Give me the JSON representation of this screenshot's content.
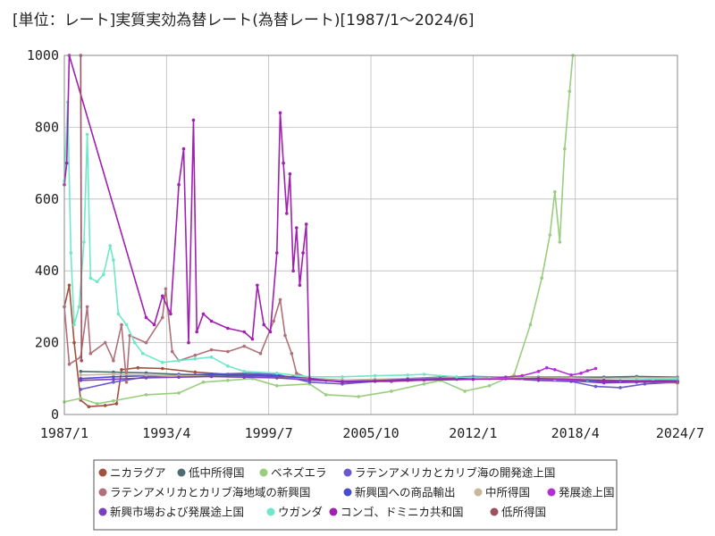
{
  "chart_data": {
    "type": "line",
    "title": "[単位：レート]実質実効為替レート(為替レート)[1987/1～2024/6]",
    "xlabel": "",
    "ylabel": "",
    "xlim": [
      1987.0,
      2024.5
    ],
    "ylim": [
      0,
      1000
    ],
    "x_tick_labels": [
      {
        "x": 1987.0,
        "label": "1987/1"
      },
      {
        "x": 1993.25,
        "label": "1993/4"
      },
      {
        "x": 1999.5,
        "label": "1999/7"
      },
      {
        "x": 2005.75,
        "label": "2005/10"
      },
      {
        "x": 2012.0,
        "label": "2012/1"
      },
      {
        "x": 2018.25,
        "label": "2018/4"
      },
      {
        "x": 2024.5,
        "label": "2024/7"
      }
    ],
    "y_ticks": [
      0,
      200,
      400,
      600,
      800,
      1000
    ],
    "grid": true,
    "legend_position": "bottom",
    "series": [
      {
        "name": "ニカラグア",
        "color": "#a0523f",
        "points": [
          [
            1987.0,
            300
          ],
          [
            1987.3,
            360
          ],
          [
            1987.6,
            200
          ],
          [
            1988.0,
            40
          ],
          [
            1988.5,
            22
          ],
          [
            1989.5,
            25
          ],
          [
            1990.2,
            30
          ],
          [
            1990.5,
            125
          ],
          [
            1991.5,
            130
          ],
          [
            1993.0,
            128
          ],
          [
            1995.0,
            118
          ],
          [
            1997.0,
            112
          ],
          [
            1999.0,
            110
          ],
          [
            2001.0,
            105
          ],
          [
            2003.0,
            95
          ],
          [
            2005.0,
            92
          ],
          [
            2007.0,
            92
          ],
          [
            2009.0,
            96
          ],
          [
            2011.0,
            98
          ],
          [
            2013.0,
            100
          ],
          [
            2015.0,
            102
          ],
          [
            2017.0,
            100
          ],
          [
            2019.0,
            96
          ],
          [
            2021.0,
            92
          ],
          [
            2023.0,
            90
          ],
          [
            2024.5,
            88
          ]
        ]
      },
      {
        "name": "低中所得国",
        "color": "#4e6d72",
        "points": [
          [
            1988.0,
            120
          ],
          [
            1990.0,
            118
          ],
          [
            1992.0,
            116
          ],
          [
            1994.0,
            112
          ],
          [
            1996.0,
            110
          ],
          [
            1998.0,
            108
          ],
          [
            2000.0,
            106
          ],
          [
            2002.0,
            100
          ],
          [
            2004.0,
            96
          ],
          [
            2006.0,
            96
          ],
          [
            2008.0,
            98
          ],
          [
            2010.0,
            100
          ],
          [
            2012.0,
            102
          ],
          [
            2014.0,
            103
          ],
          [
            2016.0,
            104
          ],
          [
            2018.0,
            104
          ],
          [
            2020.0,
            104
          ],
          [
            2022.0,
            106
          ],
          [
            2024.5,
            104
          ]
        ]
      },
      {
        "name": "ベネズエラ",
        "color": "#9acd7f",
        "points": [
          [
            1987.0,
            35
          ],
          [
            1988.0,
            45
          ],
          [
            1989.0,
            30
          ],
          [
            1990.0,
            38
          ],
          [
            1992.0,
            55
          ],
          [
            1994.0,
            60
          ],
          [
            1995.5,
            90
          ],
          [
            1997.0,
            95
          ],
          [
            1998.5,
            100
          ],
          [
            2000.0,
            80
          ],
          [
            2002.0,
            85
          ],
          [
            2003.0,
            55
          ],
          [
            2005.0,
            50
          ],
          [
            2007.0,
            65
          ],
          [
            2009.0,
            85
          ],
          [
            2010.0,
            95
          ],
          [
            2011.5,
            65
          ],
          [
            2013.0,
            80
          ],
          [
            2014.5,
            110
          ],
          [
            2015.5,
            250
          ],
          [
            2016.2,
            380
          ],
          [
            2016.7,
            500
          ],
          [
            2017.0,
            620
          ],
          [
            2017.3,
            480
          ],
          [
            2017.6,
            740
          ],
          [
            2017.9,
            900
          ],
          [
            2018.1,
            1000
          ]
        ]
      },
      {
        "name": "ラテンアメリカとカリブ海の開発途上国",
        "color": "#6a5acd",
        "points": [
          [
            1988.0,
            70
          ],
          [
            1990.0,
            90
          ],
          [
            1992.0,
            105
          ],
          [
            1994.0,
            110
          ],
          [
            1996.0,
            112
          ],
          [
            1998.0,
            115
          ],
          [
            2000.0,
            112
          ],
          [
            2002.0,
            90
          ],
          [
            2004.0,
            85
          ],
          [
            2006.0,
            92
          ],
          [
            2008.0,
            98
          ],
          [
            2010.0,
            100
          ],
          [
            2012.0,
            102
          ],
          [
            2014.0,
            100
          ],
          [
            2016.0,
            95
          ],
          [
            2018.0,
            92
          ],
          [
            2019.5,
            78
          ],
          [
            2021.0,
            75
          ],
          [
            2022.5,
            85
          ],
          [
            2024.5,
            90
          ]
        ]
      },
      {
        "name": "ラテンアメリカとカリブ海地域の新興国",
        "color": "#b0707a",
        "points": [
          [
            1987.0,
            300
          ],
          [
            1987.3,
            140
          ],
          [
            1988.0,
            160
          ],
          [
            1988.4,
            300
          ],
          [
            1988.6,
            170
          ],
          [
            1989.5,
            200
          ],
          [
            1990.0,
            150
          ],
          [
            1990.5,
            250
          ],
          [
            1990.8,
            90
          ],
          [
            1991.0,
            220
          ],
          [
            1992.0,
            200
          ],
          [
            1993.0,
            270
          ],
          [
            1993.2,
            350
          ],
          [
            1993.6,
            175
          ],
          [
            1994.0,
            150
          ],
          [
            1995.0,
            165
          ],
          [
            1996.0,
            180
          ],
          [
            1997.0,
            175
          ],
          [
            1998.0,
            190
          ],
          [
            1999.0,
            170
          ],
          [
            1999.8,
            260
          ],
          [
            2000.2,
            320
          ],
          [
            2000.5,
            220
          ],
          [
            2000.9,
            170
          ],
          [
            2001.2,
            115
          ],
          [
            2002.0,
            100
          ],
          [
            2004.0,
            95
          ],
          [
            2008.0,
            98
          ],
          [
            2012.0,
            100
          ],
          [
            2016.0,
            98
          ],
          [
            2020.0,
            92
          ],
          [
            2024.5,
            90
          ]
        ]
      },
      {
        "name": "新興国への商品輸出",
        "color": "#4b4bd0",
        "points": [
          [
            1988.0,
            100
          ],
          [
            1990.0,
            105
          ],
          [
            1992.0,
            108
          ],
          [
            1994.0,
            110
          ],
          [
            1996.0,
            112
          ],
          [
            1998.0,
            110
          ],
          [
            2000.0,
            108
          ],
          [
            2002.0,
            98
          ],
          [
            2004.0,
            94
          ],
          [
            2006.0,
            96
          ],
          [
            2008.0,
            100
          ],
          [
            2010.0,
            104
          ],
          [
            2012.0,
            106
          ],
          [
            2014.0,
            104
          ],
          [
            2016.0,
            98
          ],
          [
            2018.0,
            96
          ],
          [
            2020.0,
            90
          ],
          [
            2022.0,
            94
          ],
          [
            2024.5,
            96
          ]
        ]
      },
      {
        "name": "中所得国",
        "color": "#c8b89a",
        "points": [
          [
            1988.0,
            110
          ],
          [
            1990.0,
            112
          ],
          [
            1992.0,
            110
          ],
          [
            1994.0,
            108
          ],
          [
            1996.0,
            106
          ],
          [
            1998.0,
            104
          ],
          [
            2000.0,
            102
          ],
          [
            2002.0,
            98
          ],
          [
            2004.0,
            96
          ],
          [
            2006.0,
            98
          ],
          [
            2008.0,
            100
          ],
          [
            2010.0,
            102
          ],
          [
            2012.0,
            104
          ],
          [
            2014.0,
            104
          ],
          [
            2016.0,
            102
          ],
          [
            2018.0,
            102
          ],
          [
            2020.0,
            100
          ],
          [
            2022.0,
            102
          ],
          [
            2024.5,
            102
          ]
        ]
      },
      {
        "name": "発展途上国",
        "color": "#b030d0",
        "points": [
          [
            2013.0,
            100
          ],
          [
            2014.0,
            104
          ],
          [
            2015.0,
            108
          ],
          [
            2016.0,
            120
          ],
          [
            2016.5,
            130
          ],
          [
            2017.0,
            125
          ],
          [
            2018.0,
            110
          ],
          [
            2018.6,
            115
          ],
          [
            2019.0,
            122
          ],
          [
            2019.5,
            128
          ]
        ]
      },
      {
        "name": "新興市場および発展途上国",
        "color": "#7a3fbf",
        "points": [
          [
            1988.0,
            95
          ],
          [
            1990.0,
            98
          ],
          [
            1992.0,
            102
          ],
          [
            1994.0,
            104
          ],
          [
            1996.0,
            106
          ],
          [
            1998.0,
            104
          ],
          [
            2000.0,
            102
          ],
          [
            2002.0,
            96
          ],
          [
            2004.0,
            92
          ],
          [
            2006.0,
            94
          ],
          [
            2008.0,
            98
          ],
          [
            2010.0,
            100
          ],
          [
            2012.0,
            102
          ],
          [
            2014.0,
            100
          ],
          [
            2016.0,
            96
          ],
          [
            2018.0,
            94
          ],
          [
            2020.0,
            88
          ],
          [
            2022.0,
            90
          ],
          [
            2024.5,
            92
          ]
        ]
      },
      {
        "name": "ウガンダ",
        "color": "#6ee8c8",
        "points": [
          [
            1987.0,
            650
          ],
          [
            1987.2,
            870
          ],
          [
            1987.4,
            450
          ],
          [
            1987.6,
            250
          ],
          [
            1987.9,
            300
          ],
          [
            1988.2,
            480
          ],
          [
            1988.4,
            780
          ],
          [
            1988.6,
            380
          ],
          [
            1989.0,
            370
          ],
          [
            1989.4,
            390
          ],
          [
            1989.8,
            470
          ],
          [
            1990.0,
            430
          ],
          [
            1990.3,
            280
          ],
          [
            1990.8,
            250
          ],
          [
            1991.3,
            200
          ],
          [
            1991.8,
            170
          ],
          [
            1993.0,
            145
          ],
          [
            1994.0,
            150
          ],
          [
            1995.0,
            155
          ],
          [
            1996.0,
            160
          ],
          [
            1997.0,
            135
          ],
          [
            1998.0,
            120
          ],
          [
            2000.0,
            115
          ],
          [
            2002.0,
            105
          ],
          [
            2004.0,
            105
          ],
          [
            2006.0,
            108
          ],
          [
            2008.0,
            110
          ],
          [
            2009.0,
            112
          ],
          [
            2011.0,
            105
          ],
          [
            2013.0,
            100
          ],
          [
            2015.0,
            100
          ],
          [
            2017.0,
            98
          ],
          [
            2019.0,
            96
          ],
          [
            2021.0,
            95
          ],
          [
            2023.0,
            98
          ],
          [
            2024.5,
            98
          ]
        ]
      },
      {
        "name": "コンゴ、ドミニカ共和国",
        "color": "#a020b0",
        "points": [
          [
            1987.0,
            640
          ],
          [
            1987.15,
            700
          ],
          [
            1987.3,
            1000
          ],
          [
            1992.0,
            270
          ],
          [
            1992.5,
            250
          ],
          [
            1993.0,
            330
          ],
          [
            1993.5,
            280
          ],
          [
            1994.0,
            640
          ],
          [
            1994.3,
            740
          ],
          [
            1994.6,
            200
          ],
          [
            1994.9,
            820
          ],
          [
            1995.1,
            230
          ],
          [
            1995.5,
            280
          ],
          [
            1996.0,
            260
          ],
          [
            1997.0,
            240
          ],
          [
            1998.0,
            230
          ],
          [
            1998.5,
            210
          ],
          [
            1998.8,
            360
          ],
          [
            1999.2,
            250
          ],
          [
            1999.6,
            230
          ],
          [
            2000.0,
            450
          ],
          [
            2000.2,
            840
          ],
          [
            2000.4,
            700
          ],
          [
            2000.6,
            560
          ],
          [
            2000.8,
            670
          ],
          [
            2001.0,
            400
          ],
          [
            2001.2,
            520
          ],
          [
            2001.4,
            360
          ],
          [
            2001.6,
            450
          ],
          [
            2001.8,
            530
          ],
          [
            2002.0,
            100
          ],
          [
            2004.0,
            90
          ],
          [
            2008.0,
            95
          ],
          [
            2012.0,
            98
          ],
          [
            2016.0,
            100
          ],
          [
            2020.0,
            95
          ],
          [
            2024.5,
            92
          ]
        ]
      },
      {
        "name": "低所得国",
        "color": "#9c5060",
        "points": [
          [
            1988.0,
            1000
          ],
          [
            1988.05,
            150
          ]
        ]
      }
    ]
  },
  "legend": {
    "items": [
      "ニカラグア",
      "低中所得国",
      "ベネズエラ",
      "ラテンアメリカとカリブ海の開発途上国",
      "ラテンアメリカとカリブ海地域の新興国",
      "新興国への商品輸出",
      "中所得国",
      "発展途上国",
      "新興市場および発展途上国",
      "ウガンダ",
      "コンゴ、ドミニカ共和国",
      "低所得国"
    ]
  }
}
